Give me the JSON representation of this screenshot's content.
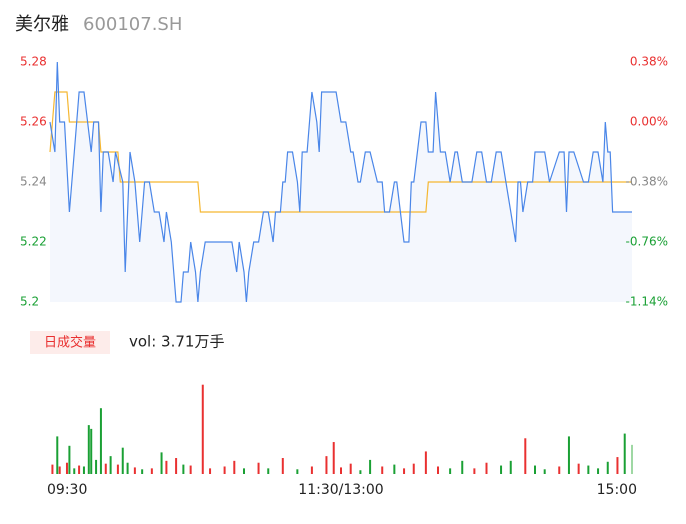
{
  "chart_data": [
    {
      "type": "line",
      "title": "美尔雅",
      "subtitle": "600107.SH",
      "xlim": [
        0,
        240
      ],
      "x": [
        0,
        2,
        3,
        4,
        6,
        8,
        10,
        12,
        14,
        17,
        18,
        20,
        21,
        22,
        24,
        26,
        27,
        30,
        31,
        32,
        33,
        35,
        37,
        39,
        41,
        43,
        45,
        47,
        48,
        50,
        52,
        54,
        55,
        57,
        58,
        60,
        61,
        62,
        64,
        66,
        75,
        77,
        78,
        80,
        81,
        82,
        84,
        86,
        88,
        90,
        92,
        93,
        95,
        96,
        97,
        98,
        100,
        102,
        103,
        104,
        106,
        107,
        108,
        110,
        111,
        112,
        114,
        118,
        120,
        122,
        124,
        125,
        127,
        128,
        130,
        132,
        135,
        137,
        138,
        140,
        142,
        143,
        146,
        148,
        149,
        150,
        153,
        155,
        156,
        158,
        159,
        160,
        161,
        163,
        165,
        167,
        168,
        170,
        174,
        176,
        178,
        180,
        182,
        184,
        186,
        188,
        190,
        192,
        193,
        194,
        195,
        197,
        199,
        200,
        204,
        206,
        210,
        212,
        213,
        214,
        216,
        220,
        222,
        224,
        226,
        228,
        229,
        230,
        231,
        232,
        234,
        235,
        240
      ],
      "values": [
        5.26,
        5.25,
        5.28,
        5.26,
        5.26,
        5.23,
        5.25,
        5.27,
        5.27,
        5.25,
        5.26,
        5.26,
        5.23,
        5.25,
        5.25,
        5.24,
        5.25,
        5.24,
        5.21,
        5.23,
        5.25,
        5.24,
        5.22,
        5.24,
        5.24,
        5.23,
        5.23,
        5.22,
        5.23,
        5.22,
        5.2,
        5.2,
        5.21,
        5.21,
        5.22,
        5.21,
        5.2,
        5.21,
        5.22,
        5.22,
        5.22,
        5.21,
        5.22,
        5.21,
        5.2,
        5.21,
        5.22,
        5.22,
        5.23,
        5.23,
        5.22,
        5.23,
        5.23,
        5.24,
        5.24,
        5.25,
        5.25,
        5.24,
        5.23,
        5.25,
        5.25,
        5.26,
        5.27,
        5.26,
        5.25,
        5.27,
        5.27,
        5.27,
        5.26,
        5.26,
        5.25,
        5.25,
        5.24,
        5.24,
        5.25,
        5.25,
        5.24,
        5.24,
        5.23,
        5.23,
        5.24,
        5.24,
        5.22,
        5.22,
        5.24,
        5.24,
        5.26,
        5.26,
        5.25,
        5.25,
        5.27,
        5.26,
        5.25,
        5.25,
        5.24,
        5.25,
        5.25,
        5.24,
        5.24,
        5.25,
        5.25,
        5.24,
        5.24,
        5.25,
        5.25,
        5.24,
        5.23,
        5.22,
        5.24,
        5.24,
        5.23,
        5.24,
        5.24,
        5.25,
        5.25,
        5.24,
        5.25,
        5.25,
        5.23,
        5.25,
        5.25,
        5.24,
        5.24,
        5.25,
        5.25,
        5.24,
        5.26,
        5.25,
        5.25,
        5.23,
        5.23,
        5.23,
        5.23
      ],
      "color": "#4a86e8",
      "avg_x": [
        0,
        2,
        7,
        8,
        20,
        21,
        28,
        29,
        61,
        62,
        155,
        156,
        240
      ],
      "avg_values": [
        5.25,
        5.27,
        5.27,
        5.26,
        5.26,
        5.25,
        5.25,
        5.24,
        5.24,
        5.23,
        5.23,
        5.24,
        5.24
      ],
      "avg_color": "#f5b731",
      "ylim": [
        5.2,
        5.28
      ],
      "yticks": [
        5.28,
        5.26,
        5.24,
        5.22,
        5.2
      ],
      "ytick_colors": [
        "#e93030",
        "#e93030",
        "#888888",
        "#1aa034",
        "#1aa034"
      ],
      "y2lim": [
        -1.14,
        0.38
      ],
      "y2ticks": [
        {
          "value": 0.38,
          "label": "0.38%"
        },
        {
          "value": 0,
          "label": "0.00%"
        },
        {
          "value": -0.38,
          "label": "-0.38%"
        },
        {
          "value": -0.76,
          "label": "-0.76%"
        },
        {
          "value": -1.14,
          "label": "-1.14%"
        }
      ]
    },
    {
      "type": "bar",
      "title": "日成交量",
      "annotation": "vol: 3.71万手",
      "xlim": [
        0,
        240
      ],
      "xticks": [
        {
          "value": 0,
          "label": "09:30"
        },
        {
          "value": 120,
          "label": "11:30/13:00"
        },
        {
          "value": 240,
          "label": "15:00"
        }
      ],
      "x": [
        1,
        3,
        4,
        7,
        8,
        10,
        12,
        14,
        16,
        17,
        19,
        21,
        23,
        25,
        28,
        30,
        32,
        35,
        38,
        42,
        46,
        48,
        52,
        55,
        58,
        63,
        66,
        72,
        76,
        80,
        86,
        90,
        96,
        102,
        108,
        114,
        117,
        120,
        124,
        128,
        132,
        137,
        142,
        146,
        150,
        155,
        160,
        165,
        170,
        175,
        180,
        186,
        190,
        196,
        200,
        204,
        210,
        214,
        218,
        222,
        226,
        230,
        234,
        237,
        240
      ],
      "values": [
        100,
        400,
        80,
        120,
        300,
        60,
        90,
        80,
        520,
        480,
        150,
        700,
        110,
        190,
        100,
        280,
        120,
        70,
        50,
        60,
        230,
        140,
        170,
        100,
        90,
        950,
        60,
        80,
        140,
        60,
        120,
        60,
        170,
        50,
        80,
        190,
        340,
        70,
        110,
        40,
        150,
        80,
        100,
        60,
        110,
        240,
        80,
        60,
        140,
        60,
        120,
        90,
        140,
        380,
        90,
        50,
        80,
        400,
        110,
        90,
        60,
        130,
        180,
        430,
        310
      ],
      "colors": [
        "#e93030",
        "#1aa034",
        "#e93030",
        "#e93030",
        "#1aa034",
        "#1aa034",
        "#e93030",
        "#1aa034",
        "#1aa034",
        "#1aa034",
        "#1aa034",
        "#1aa034",
        "#e93030",
        "#1aa034",
        "#e93030",
        "#1aa034",
        "#1aa034",
        "#e93030",
        "#1aa034",
        "#e93030",
        "#1aa034",
        "#e93030",
        "#e93030",
        "#1aa034",
        "#e93030",
        "#e93030",
        "#e93030",
        "#e93030",
        "#e93030",
        "#1aa034",
        "#e93030",
        "#1aa034",
        "#e93030",
        "#1aa034",
        "#e93030",
        "#e93030",
        "#e93030",
        "#e93030",
        "#e93030",
        "#1aa034",
        "#1aa034",
        "#e93030",
        "#1aa034",
        "#e93030",
        "#e93030",
        "#e93030",
        "#e93030",
        "#1aa034",
        "#1aa034",
        "#e93030",
        "#e93030",
        "#1aa034",
        "#1aa034",
        "#e93030",
        "#1aa034",
        "#1aa034",
        "#e93030",
        "#1aa034",
        "#e93030",
        "#1aa034",
        "#1aa034",
        "#1aa034",
        "#e93030",
        "#1aa034",
        "#9fd8a4"
      ],
      "ylim": [
        0,
        1000
      ]
    }
  ]
}
